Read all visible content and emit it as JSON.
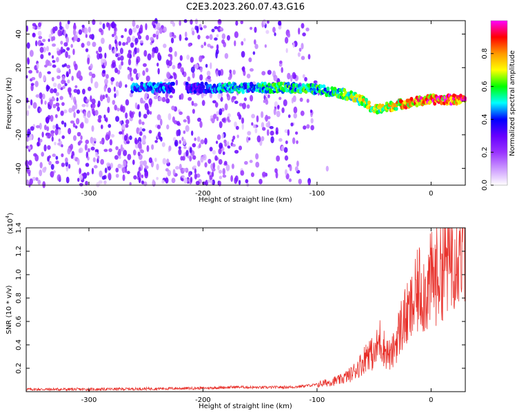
{
  "title": "C2E3.2023.260.07.43.G16",
  "chart_data": [
    {
      "type": "heatmap",
      "xlabel": "Height of straight line (km)",
      "ylabel": "Frequency (Hz)",
      "xlim": [
        -355,
        30
      ],
      "ylim": [
        -50,
        48
      ],
      "x_ticks": [
        -300,
        -200,
        -100,
        0
      ],
      "y_ticks": [
        -40,
        -20,
        0,
        20,
        40
      ],
      "colorbar": {
        "label": "Normalized spectral amplitude",
        "range": [
          0.0,
          1.0
        ],
        "ticks": [
          0.0,
          0.2,
          0.4,
          0.6,
          0.8
        ],
        "colormap": [
          "#ffffff",
          "#cc99ff",
          "#9933ff",
          "#6600ff",
          "#0000ff",
          "#00ffff",
          "#00ff00",
          "#ffff00",
          "#ff9900",
          "#ff0000",
          "#ff00ff"
        ]
      },
      "ridge": {
        "description_values": "dominant frequency (Hz) vs height (km)",
        "x": [
          -260,
          -240,
          -220,
          -200,
          -180,
          -160,
          -140,
          -120,
          -100,
          -90,
          -80,
          -70,
          -60,
          -50,
          -40,
          -30,
          -20,
          -10,
          0,
          10,
          20,
          30
        ],
        "y": [
          8,
          8,
          8,
          8,
          8,
          8,
          8,
          8,
          7,
          6,
          5,
          3,
          0,
          -5,
          -4,
          -2,
          -1,
          0,
          1,
          1,
          1,
          1
        ],
        "amplitude": [
          0.45,
          0.5,
          0.4,
          0.4,
          0.55,
          0.5,
          0.6,
          0.6,
          0.6,
          0.55,
          0.65,
          0.7,
          0.75,
          0.7,
          0.75,
          0.8,
          0.85,
          0.9,
          0.95,
          0.95,
          0.95,
          0.95
        ]
      },
      "noise_extent_km": [
        -355,
        -90
      ]
    },
    {
      "type": "line",
      "xlabel": "Height of straight line (km)",
      "ylabel": "SNR (10 * v/v)",
      "y_scale_label": "(x10",
      "y_scale_exp": "4",
      "y_scale_close": ")",
      "xlim": [
        -355,
        30
      ],
      "ylim": [
        0,
        1.4
      ],
      "x_ticks": [
        -300,
        -200,
        -100,
        0
      ],
      "y_ticks": [
        0.2,
        0.4,
        0.6,
        0.8,
        1.0,
        1.2,
        1.4
      ],
      "color": "#e8302a",
      "series": [
        {
          "x": [
            -355,
            -300,
            -250,
            -200,
            -170,
            -150,
            -120,
            -100,
            -90,
            -80,
            -70,
            -60,
            -55,
            -50,
            -45,
            -40,
            -35,
            -30,
            -25,
            -20,
            -15,
            -10,
            -5,
            0,
            5,
            10,
            15,
            20,
            25,
            30
          ],
          "y": [
            0.02,
            0.02,
            0.025,
            0.03,
            0.04,
            0.035,
            0.04,
            0.06,
            0.08,
            0.1,
            0.15,
            0.25,
            0.35,
            0.3,
            0.45,
            0.35,
            0.3,
            0.45,
            0.6,
            0.65,
            0.75,
            0.9,
            0.85,
            0.95,
            1.0,
            1.1,
            1.15,
            1.25,
            1.3,
            1.32
          ]
        }
      ]
    }
  ]
}
